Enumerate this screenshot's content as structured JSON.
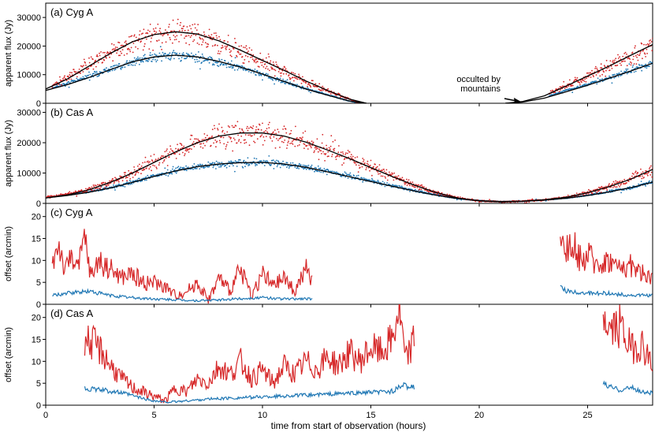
{
  "figure": {
    "xlabel": "time from start of observation (hours)",
    "colors": {
      "red": "#d62728",
      "blue": "#1f77b4",
      "fit": "#000000"
    }
  },
  "chart_data": [
    {
      "type": "scatter",
      "title": "(a) Cyg A",
      "ylabel": "apparent flux (Jy)",
      "xlim": [
        0,
        28
      ],
      "ylim": [
        0,
        35000
      ],
      "yticks": [
        0,
        10000,
        20000,
        30000
      ],
      "xticks": [
        0,
        5,
        10,
        15,
        20,
        25
      ],
      "annotation": {
        "text_lines": [
          "occulted by",
          "mountains"
        ],
        "points_to": [
          22,
          0
        ]
      },
      "series": [
        {
          "color": "red",
          "x": [
            0.3,
            1,
            2,
            3,
            4,
            5,
            6,
            7,
            8,
            9,
            10,
            11,
            12,
            13,
            14,
            14.5,
            23.2,
            24,
            25,
            26,
            27,
            28
          ],
          "y": [
            6000,
            9000,
            13500,
            17500,
            21500,
            24000,
            25000,
            24000,
            21500,
            18000,
            14500,
            11000,
            7500,
            4500,
            1500,
            0,
            3500,
            6000,
            9500,
            13000,
            16500,
            20500
          ]
        },
        {
          "color": "blue",
          "x": [
            0.3,
            1,
            2,
            3,
            4,
            5,
            6,
            7,
            8,
            9,
            10,
            11,
            12,
            13,
            14,
            14.5,
            23.2,
            24,
            25,
            26,
            27,
            28
          ],
          "y": [
            5500,
            7000,
            9500,
            12000,
            14500,
            16000,
            16800,
            16000,
            14500,
            12500,
            10000,
            7500,
            5000,
            3000,
            800,
            0,
            2500,
            4500,
            6500,
            9000,
            11500,
            14000
          ]
        }
      ],
      "fits": [
        {
          "x": [
            0,
            1,
            2,
            3,
            4,
            5,
            6,
            7,
            8,
            9,
            10,
            11,
            12,
            13,
            14,
            14.8
          ],
          "y": [
            5000,
            8500,
            13000,
            17500,
            21500,
            24000,
            25000,
            24200,
            21800,
            18500,
            15000,
            11500,
            7800,
            4500,
            1500,
            0
          ]
        },
        {
          "x": [
            0,
            1,
            2,
            3,
            4,
            5,
            6,
            7,
            8,
            9,
            10,
            11,
            12,
            13,
            14,
            14.8
          ],
          "y": [
            4500,
            6500,
            9000,
            11800,
            14500,
            16200,
            16800,
            16200,
            14600,
            12600,
            10200,
            7600,
            5000,
            2800,
            800,
            0
          ]
        },
        {
          "x": [
            21.2,
            22,
            23,
            24,
            25,
            26,
            27,
            28
          ],
          "y": [
            0,
            600,
            2600,
            6000,
            9500,
            13000,
            16800,
            20500
          ]
        },
        {
          "x": [
            21.2,
            22,
            23,
            24,
            25,
            26,
            27,
            28
          ],
          "y": [
            0,
            400,
            1800,
            4000,
            6300,
            8800,
            11300,
            14000
          ]
        }
      ]
    },
    {
      "type": "scatter",
      "title": "(b) Cas A",
      "ylabel": "apparent flux (Jy)",
      "xlim": [
        0,
        28
      ],
      "ylim": [
        0,
        33000
      ],
      "yticks": [
        0,
        10000,
        20000,
        30000
      ],
      "xticks": [
        0,
        5,
        10,
        15,
        20,
        25
      ],
      "series": [
        {
          "color": "red",
          "x": [
            0,
            1,
            2,
            3,
            4,
            5,
            6,
            7,
            8,
            9,
            10,
            11,
            12,
            13,
            14,
            15,
            16,
            17,
            18,
            19,
            20,
            21,
            22,
            23,
            24,
            25,
            26,
            27,
            28
          ],
          "y": [
            2000,
            3000,
            4500,
            7000,
            10000,
            13500,
            17000,
            20000,
            22000,
            23000,
            23000,
            22000,
            20000,
            17500,
            15000,
            12000,
            9000,
            6000,
            3500,
            1800,
            800,
            500,
            700,
            1200,
            2000,
            3500,
            5500,
            8000,
            11000
          ]
        },
        {
          "color": "blue",
          "x": [
            0,
            1,
            2,
            3,
            4,
            5,
            6,
            7,
            8,
            9,
            10,
            11,
            12,
            13,
            14,
            15,
            16,
            17,
            18,
            19,
            20,
            21,
            22,
            23,
            24,
            25,
            26,
            27,
            28
          ],
          "y": [
            2000,
            2800,
            3800,
            5200,
            7000,
            9000,
            10800,
            12200,
            13000,
            13300,
            13500,
            13000,
            12000,
            10500,
            9000,
            7500,
            5800,
            4200,
            2800,
            1600,
            900,
            600,
            700,
            1100,
            1700,
            2600,
            3800,
            5200,
            7000
          ]
        }
      ],
      "fits": [
        {
          "x": [
            0,
            1,
            2,
            3,
            4,
            5,
            6,
            7,
            8,
            9,
            10,
            11,
            12,
            13,
            14,
            15,
            16,
            17,
            18,
            19,
            20,
            21,
            22,
            23,
            24,
            25,
            26,
            27,
            28
          ],
          "y": [
            1800,
            2800,
            4500,
            7000,
            10000,
            13500,
            17000,
            20000,
            22200,
            23200,
            23200,
            22200,
            20200,
            17600,
            14800,
            11800,
            8800,
            6000,
            3600,
            1800,
            800,
            500,
            700,
            1200,
            2000,
            3500,
            5500,
            8000,
            11200
          ]
        },
        {
          "x": [
            0,
            1,
            2,
            3,
            4,
            5,
            6,
            7,
            8,
            9,
            10,
            11,
            12,
            13,
            14,
            15,
            16,
            17,
            18,
            19,
            20,
            21,
            22,
            23,
            24,
            25,
            26,
            27,
            28
          ],
          "y": [
            1800,
            2600,
            3700,
            5100,
            6900,
            8900,
            10700,
            12100,
            13000,
            13400,
            13500,
            13000,
            11900,
            10400,
            8800,
            7200,
            5600,
            4100,
            2700,
            1600,
            900,
            600,
            700,
            1100,
            1700,
            2600,
            3800,
            5200,
            7000
          ]
        }
      ]
    },
    {
      "type": "line",
      "title": "(c) Cyg A",
      "ylabel": "offset (arcmin)",
      "xlim": [
        0,
        28
      ],
      "ylim": [
        0,
        23
      ],
      "yticks": [
        0,
        5,
        10,
        15,
        20
      ],
      "xticks": [
        0,
        5,
        10,
        15,
        20,
        25
      ],
      "series": [
        {
          "color": "red",
          "x": [
            0.3,
            0.6,
            0.9,
            1.2,
            1.5,
            1.8,
            2.1,
            2.4,
            3,
            3.5,
            4,
            4.5,
            5,
            5.5,
            6,
            6.5,
            7,
            7.5,
            8,
            8.5,
            9,
            9.5,
            10,
            10.5,
            11,
            11.5,
            12,
            12.3,
            23.7,
            23.8,
            24,
            24.3,
            24.7,
            25,
            25.5,
            26,
            26.5,
            27,
            27.5,
            28
          ],
          "y": [
            9,
            14,
            7,
            12,
            8,
            15,
            6,
            10,
            8,
            6,
            7,
            5,
            5,
            4,
            2,
            3,
            5,
            1,
            6,
            3,
            8,
            2,
            7,
            4,
            6,
            3,
            8,
            5,
            18,
            16,
            12,
            14,
            10,
            11,
            9,
            10,
            8,
            9,
            7,
            6
          ]
        },
        {
          "color": "blue",
          "x": [
            0.3,
            1,
            2,
            3,
            4,
            5,
            6,
            7,
            8,
            9,
            10,
            11,
            12,
            12.3,
            23.7,
            24,
            25,
            26,
            27,
            28
          ],
          "y": [
            2,
            2.5,
            3,
            2,
            1.5,
            1.2,
            1,
            0.8,
            1,
            1.3,
            1.5,
            1.2,
            1.3,
            1.2,
            4,
            3,
            2.5,
            2.5,
            2,
            2
          ]
        }
      ]
    },
    {
      "type": "line",
      "title": "(d) Cas A",
      "ylabel": "offset (arcmin)",
      "xlim": [
        0,
        28
      ],
      "ylim": [
        0,
        23
      ],
      "yticks": [
        0,
        5,
        10,
        15,
        20
      ],
      "xticks": [
        0,
        5,
        10,
        15,
        20,
        25
      ],
      "series": [
        {
          "color": "red",
          "x": [
            1.8,
            2.2,
            2.6,
            3,
            3.5,
            4,
            4.5,
            5,
            5.5,
            6,
            6.5,
            7,
            7.5,
            8,
            8.5,
            9,
            9.5,
            10,
            10.5,
            11,
            11.5,
            12,
            12.5,
            13,
            13.5,
            14,
            14.5,
            15,
            15.5,
            16,
            16.3,
            16.6,
            17,
            25.7,
            26,
            26.5,
            27,
            27.5,
            28
          ],
          "y": [
            15,
            14,
            12,
            9,
            6,
            4,
            3,
            2,
            1,
            4,
            3,
            6,
            5,
            9,
            7,
            10,
            6,
            8,
            5,
            9,
            7,
            10,
            8,
            11,
            9,
            12,
            10,
            13,
            12,
            15,
            22,
            10,
            15,
            21,
            17,
            18,
            13,
            14,
            9
          ]
        },
        {
          "color": "blue",
          "x": [
            1.8,
            2.5,
            3,
            3.5,
            4,
            4.5,
            5,
            5.5,
            6,
            6.5,
            7,
            7.5,
            8,
            8.5,
            9,
            9.5,
            10,
            10.5,
            11,
            11.5,
            12,
            12.5,
            13,
            13.5,
            14,
            14.5,
            15,
            15.5,
            16,
            16.5,
            17,
            25.7,
            26,
            26.5,
            27,
            27.5,
            28
          ],
          "y": [
            3.8,
            3.5,
            3.2,
            2.8,
            2.2,
            1.5,
            1,
            0.7,
            0.8,
            1,
            1.2,
            1.4,
            1.5,
            1.6,
            1.7,
            1.8,
            1.9,
            2,
            2.1,
            2.2,
            2.3,
            2.4,
            2.5,
            2.6,
            2.7,
            2.8,
            2.9,
            3,
            3.2,
            4.5,
            4,
            5,
            4.2,
            3.5,
            4,
            3,
            2.8
          ]
        }
      ]
    }
  ]
}
